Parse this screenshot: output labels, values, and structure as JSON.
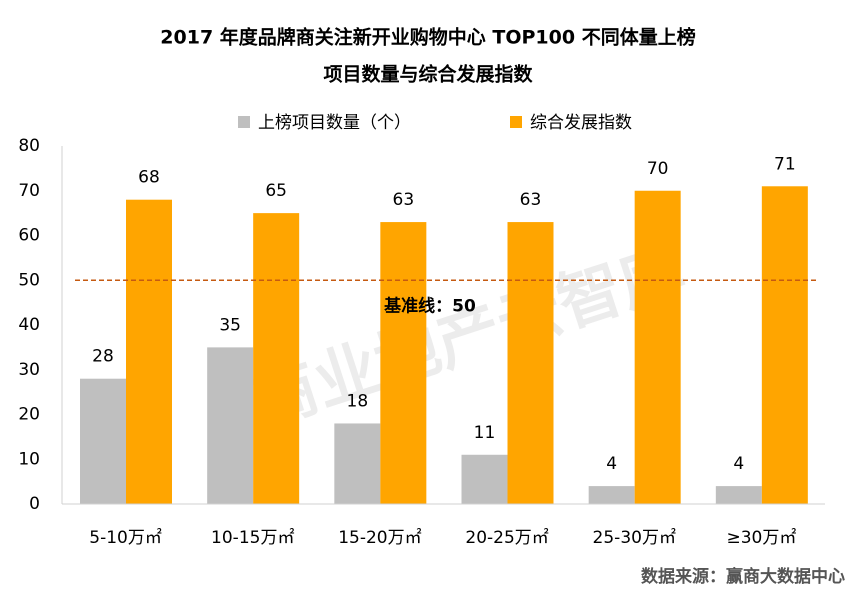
{
  "chart_data": {
    "type": "bar",
    "title": [
      "2017 年度品牌商关注新开业购物中心 TOP100 不同体量上榜",
      "项目数量与综合发展指数"
    ],
    "categories": [
      "5-10万㎡",
      "10-15万㎡",
      "15-20万㎡",
      "20-25万㎡",
      "25-30万㎡",
      "≥30万㎡"
    ],
    "series": [
      {
        "name": "上榜项目数量（个）",
        "color": "#bfbfbf",
        "values": [
          28,
          35,
          18,
          11,
          4,
          4
        ]
      },
      {
        "name": "综合发展指数",
        "color": "#ffa500",
        "values": [
          68,
          65,
          63,
          63,
          70,
          71
        ]
      }
    ],
    "ylim": [
      0,
      80
    ],
    "yticks": [
      0,
      10,
      20,
      30,
      40,
      50,
      60,
      70,
      80
    ],
    "grid": false,
    "reference_line": {
      "value": 50,
      "label": "基准线：50",
      "color": "#c55a11"
    },
    "watermark": "商业地产云智库",
    "source": "数据来源：赢商大数据中心"
  }
}
